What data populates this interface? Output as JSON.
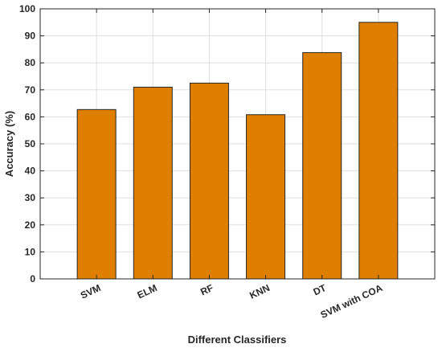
{
  "chart_data": {
    "type": "bar",
    "categories": [
      "SVM",
      "ELM",
      "RF",
      "KNN",
      "DT",
      "SVM with COA"
    ],
    "values": [
      62.7,
      71.0,
      72.5,
      60.8,
      83.8,
      95.0
    ],
    "xlabel": "Different Classifiers",
    "ylabel": "Accuracy (%)",
    "ylim": [
      0,
      100
    ],
    "yticks": [
      0,
      10,
      20,
      30,
      40,
      50,
      60,
      70,
      80,
      90,
      100
    ],
    "grid": true,
    "bar_color": "#df7f00",
    "bar_edge_color": "#262626",
    "grid_color": "#dfdfdf",
    "axis_color": "#262626"
  }
}
